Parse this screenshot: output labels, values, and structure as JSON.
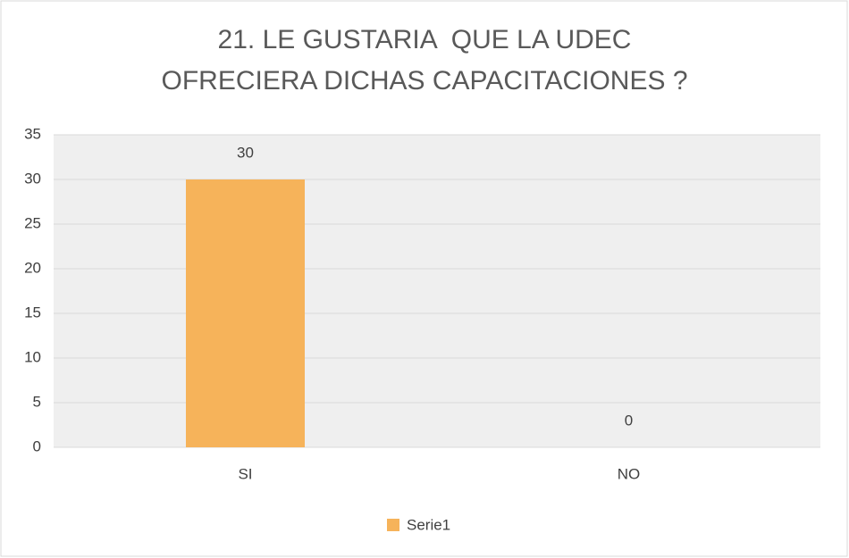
{
  "chart_data": {
    "type": "bar",
    "title": "21. LE GUSTARIA  QUE LA UDEC OFRECIERA DICHAS CAPACITACIONES ?",
    "categories": [
      "SI",
      "NO"
    ],
    "series": [
      {
        "name": "Serie1",
        "color": "#f6b35a",
        "values": [
          30,
          0
        ]
      }
    ],
    "ylim": [
      0,
      35
    ],
    "yticks": [
      0,
      5,
      10,
      15,
      20,
      25,
      30,
      35
    ],
    "grid": true,
    "legend": "bottom"
  }
}
